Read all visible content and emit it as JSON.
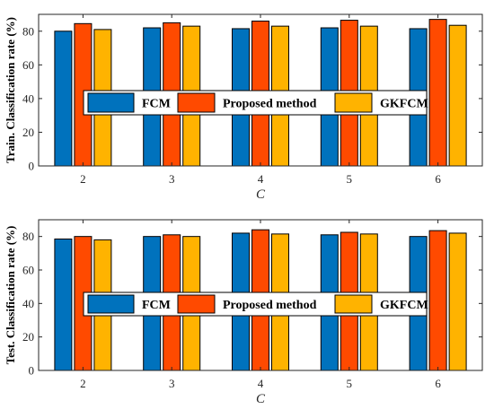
{
  "chart_data": [
    {
      "type": "bar",
      "categories": [
        "2",
        "3",
        "4",
        "5",
        "6"
      ],
      "series": [
        {
          "name": "FCM",
          "values": [
            80,
            82,
            81.5,
            82,
            81.5
          ],
          "color": "#0072BD"
        },
        {
          "name": "Proposed method",
          "values": [
            84.5,
            85,
            86,
            86.5,
            87
          ],
          "color": "#FF4A00"
        },
        {
          "name": "GKFCM",
          "values": [
            81,
            83,
            83,
            83,
            83.5
          ],
          "color": "#FFB300"
        }
      ],
      "xlabel": "C",
      "ylabel": "Train. Classification rate (%)",
      "ylim": [
        0,
        90
      ],
      "yticks": [
        0,
        20,
        40,
        60,
        80
      ],
      "grid": false,
      "legend": "center, horizontal"
    },
    {
      "type": "bar",
      "categories": [
        "2",
        "3",
        "4",
        "5",
        "6"
      ],
      "series": [
        {
          "name": "FCM",
          "values": [
            78.5,
            80,
            82,
            81,
            80
          ],
          "color": "#0072BD"
        },
        {
          "name": "Proposed method",
          "values": [
            80,
            81,
            84,
            82.5,
            83.5
          ],
          "color": "#FF4A00"
        },
        {
          "name": "GKFCM",
          "values": [
            78,
            80,
            81.5,
            81.5,
            82
          ],
          "color": "#FFB300"
        }
      ],
      "xlabel": "C",
      "ylabel": "Test. Classification rate (%)",
      "ylim": [
        0,
        90
      ],
      "yticks": [
        0,
        20,
        40,
        60,
        80
      ],
      "grid": false,
      "legend": "center, horizontal"
    }
  ]
}
